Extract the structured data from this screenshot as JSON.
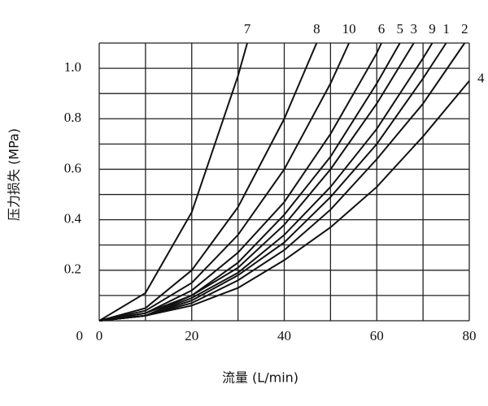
{
  "chart_data": {
    "type": "line",
    "xlabel": "流量 (L/min)",
    "ylabel": "压力损失 (MPa)",
    "xlim": [
      0,
      80
    ],
    "ylim": [
      0,
      1.1
    ],
    "xticks": [
      0,
      20,
      40,
      60,
      80
    ],
    "yticks": [
      0,
      0.2,
      0.4,
      0.6,
      0.8,
      {
        "value": 1,
        "label": "1.0"
      }
    ],
    "xgrid": [
      0,
      10,
      20,
      30,
      40,
      50,
      60,
      70,
      80
    ],
    "ygrid": [
      0,
      0.1,
      0.2,
      0.3,
      0.4,
      0.5,
      0.6,
      0.7,
      0.8,
      0.9,
      1,
      1.1
    ],
    "color": "#111111",
    "series": [
      {
        "name": "7",
        "x": [
          0,
          10,
          20,
          30,
          32
        ],
        "values": [
          0,
          0.11,
          0.43,
          0.97,
          1.1
        ]
      },
      {
        "name": "8",
        "x": [
          0,
          10,
          20,
          30,
          40,
          47
        ],
        "values": [
          0,
          0.05,
          0.2,
          0.45,
          0.8,
          1.1
        ]
      },
      {
        "name": "10",
        "x": [
          0,
          10,
          20,
          30,
          40,
          50,
          54
        ],
        "values": [
          0,
          0.04,
          0.15,
          0.34,
          0.6,
          0.94,
          1.1
        ]
      },
      {
        "name": "6",
        "x": [
          0,
          10,
          20,
          30,
          40,
          50,
          60,
          61
        ],
        "values": [
          0,
          0.03,
          0.12,
          0.27,
          0.47,
          0.74,
          1.06,
          1.1
        ]
      },
      {
        "name": "5",
        "x": [
          0,
          10,
          20,
          30,
          40,
          50,
          60,
          65
        ],
        "values": [
          0,
          0.03,
          0.1,
          0.23,
          0.42,
          0.65,
          0.94,
          1.1
        ]
      },
      {
        "name": "3",
        "x": [
          0,
          10,
          20,
          30,
          40,
          50,
          60,
          68
        ],
        "values": [
          0,
          0.02,
          0.1,
          0.21,
          0.38,
          0.6,
          0.86,
          1.1
        ]
      },
      {
        "name": "9",
        "x": [
          0,
          10,
          20,
          30,
          40,
          50,
          60,
          70,
          72
        ],
        "values": [
          0,
          0.02,
          0.09,
          0.19,
          0.34,
          0.53,
          0.76,
          1.04,
          1.1
        ]
      },
      {
        "name": "1",
        "x": [
          0,
          10,
          20,
          30,
          40,
          50,
          60,
          70,
          75
        ],
        "values": [
          0,
          0.02,
          0.08,
          0.18,
          0.31,
          0.49,
          0.7,
          0.96,
          1.1
        ]
      },
      {
        "name": "2",
        "x": [
          0,
          10,
          20,
          30,
          40,
          50,
          60,
          70,
          79
        ],
        "values": [
          0,
          0.02,
          0.07,
          0.16,
          0.28,
          0.44,
          0.64,
          0.86,
          1.1
        ]
      },
      {
        "name": "4",
        "x": [
          0,
          10,
          20,
          30,
          40,
          50,
          60,
          70,
          80
        ],
        "values": [
          0,
          0.02,
          0.06,
          0.13,
          0.24,
          0.37,
          0.53,
          0.73,
          0.95
        ]
      }
    ]
  }
}
